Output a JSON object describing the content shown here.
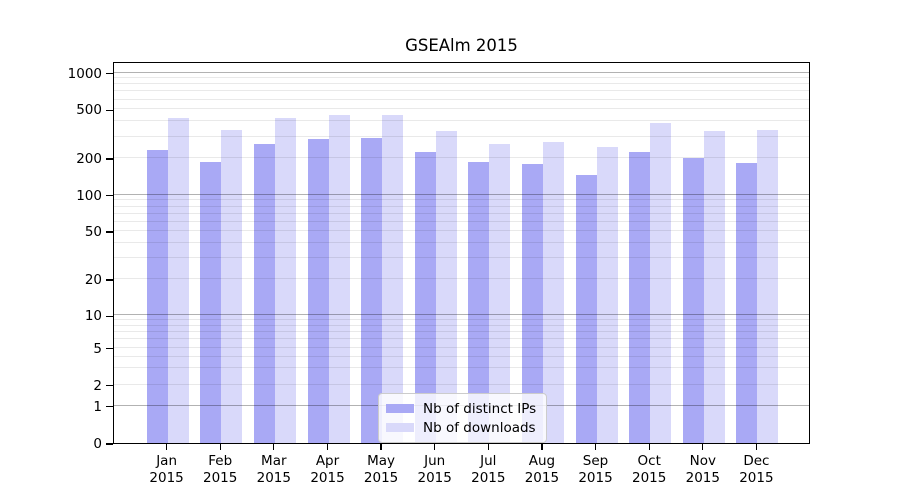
{
  "title": "GSEAlm 2015",
  "colors": {
    "distinct_ips": "#a9a9f5",
    "downloads": "#d9d9fa",
    "major_grid": "#b2b2b2",
    "minor_grid": "#e9e9e9",
    "axis": "#000000",
    "legend_border": "#cccccc"
  },
  "legend": {
    "items": [
      {
        "label": "Nb of distinct IPs",
        "series": "distinct_ips"
      },
      {
        "label": "Nb of downloads",
        "series": "downloads"
      }
    ]
  },
  "y_axis": {
    "tick_labels": [
      "0",
      "1",
      "2",
      "5",
      "10",
      "20",
      "50",
      "100",
      "200",
      "500",
      "1000"
    ]
  },
  "x_axis": {
    "months": [
      "Jan",
      "Feb",
      "Mar",
      "Apr",
      "May",
      "Jun",
      "Jul",
      "Aug",
      "Sep",
      "Oct",
      "Nov",
      "Dec"
    ],
    "year": "2015"
  },
  "chart_data": {
    "type": "bar",
    "title": "GSEAlm 2015",
    "categories": [
      "Jan 2015",
      "Feb 2015",
      "Mar 2015",
      "Apr 2015",
      "May 2015",
      "Jun 2015",
      "Jul 2015",
      "Aug 2015",
      "Sep 2015",
      "Oct 2015",
      "Nov 2015",
      "Dec 2015"
    ],
    "series": [
      {
        "name": "Nb of distinct IPs",
        "color": "#a9a9f5",
        "values": [
          232,
          184,
          259,
          287,
          291,
          225,
          184,
          178,
          144,
          224,
          202,
          183
        ]
      },
      {
        "name": "Nb of downloads",
        "color": "#d9d9fa",
        "values": [
          428,
          342,
          424,
          452,
          448,
          333,
          259,
          269,
          245,
          389,
          330,
          341
        ]
      }
    ],
    "xlabel": "",
    "ylabel": "",
    "yscale": "log-like with 0 baseline",
    "ytick_values": [
      0,
      1,
      2,
      5,
      10,
      20,
      50,
      100,
      200,
      500,
      1000
    ],
    "ylim": [
      0,
      1100
    ],
    "grid": "horizontal, minor log gridlines on",
    "legend_position": "inside lower-center"
  }
}
